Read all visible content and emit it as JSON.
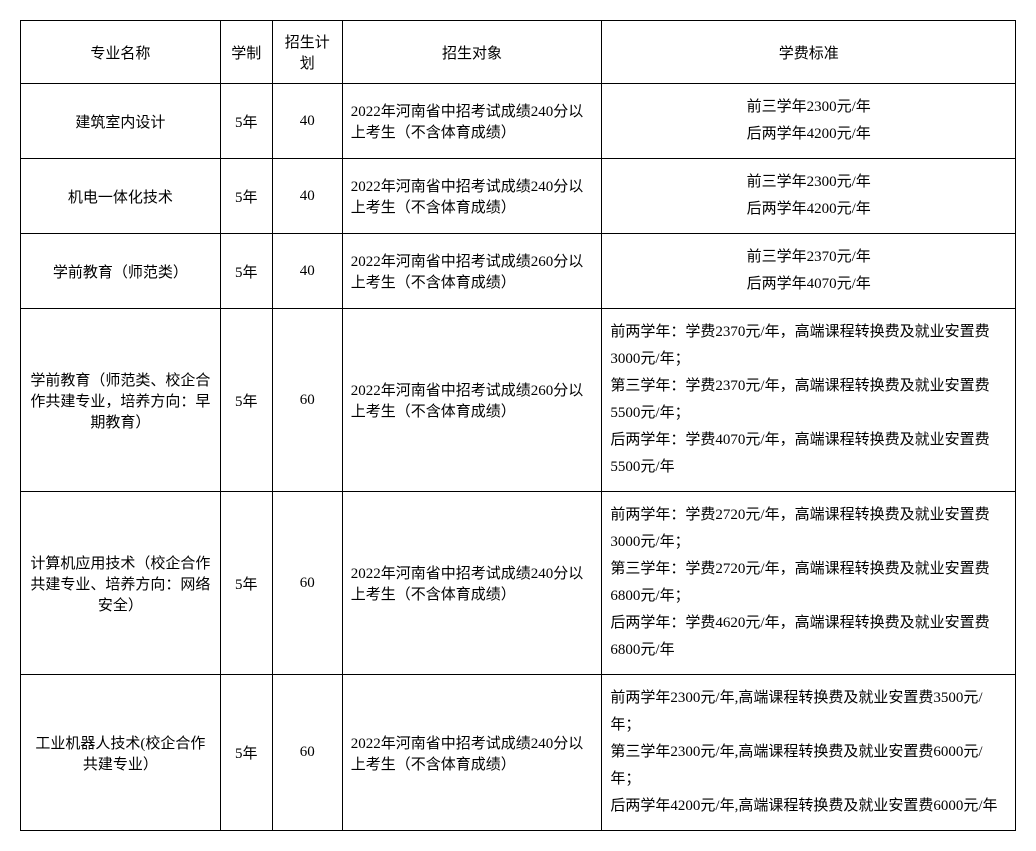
{
  "table": {
    "headers": {
      "major": "专业名称",
      "duration": "学制",
      "plan": "招生计划",
      "target": "招生对象",
      "tuition": "学费标准"
    },
    "rows": [
      {
        "major": "建筑室内设计",
        "duration": "5年",
        "plan": "40",
        "target": "2022年河南省中招考试成绩240分以上考生（不含体育成绩）",
        "tuition_lines": [
          "前三学年2300元/年",
          "后两学年4200元/年"
        ],
        "tuition_align": "center"
      },
      {
        "major": "机电一体化技术",
        "duration": "5年",
        "plan": "40",
        "target": "2022年河南省中招考试成绩240分以上考生（不含体育成绩）",
        "tuition_lines": [
          "前三学年2300元/年",
          "后两学年4200元/年"
        ],
        "tuition_align": "center"
      },
      {
        "major": "学前教育（师范类）",
        "duration": "5年",
        "plan": "40",
        "target": "2022年河南省中招考试成绩260分以上考生（不含体育成绩）",
        "tuition_lines": [
          "前三学年2370元/年",
          "后两学年4070元/年"
        ],
        "tuition_align": "center"
      },
      {
        "major": "学前教育（师范类、校企合作共建专业，培养方向：早期教育）",
        "duration": "5年",
        "plan": "60",
        "target": "2022年河南省中招考试成绩260分以上考生（不含体育成绩）",
        "tuition_lines": [
          "前两学年：学费2370元/年，高端课程转换费及就业安置费3000元/年；",
          "第三学年：学费2370元/年，高端课程转换费及就业安置费5500元/年；",
          "后两学年：学费4070元/年，高端课程转换费及就业安置费5500元/年"
        ],
        "tuition_align": "left"
      },
      {
        "major": "计算机应用技术（校企合作共建专业、培养方向：网络安全）",
        "duration": "5年",
        "plan": "60",
        "target": "2022年河南省中招考试成绩240分以上考生（不含体育成绩）",
        "tuition_lines": [
          "前两学年：学费2720元/年，高端课程转换费及就业安置费3000元/年；",
          "第三学年：学费2720元/年，高端课程转换费及就业安置费6800元/年；",
          "后两学年：学费4620元/年，高端课程转换费及就业安置费6800元/年"
        ],
        "tuition_align": "left"
      },
      {
        "major": "工业机器人技术(校企合作共建专业）",
        "duration": "5年",
        "plan": "60",
        "target": "2022年河南省中招考试成绩240分以上考生（不含体育成绩）",
        "tuition_lines": [
          "前两学年2300元/年,高端课程转换费及就业安置费3500元/年；",
          "第三学年2300元/年,高端课程转换费及就业安置费6000元/年；",
          "后两学年4200元/年,高端课程转换费及就业安置费6000元/年"
        ],
        "tuition_align": "left"
      }
    ]
  }
}
